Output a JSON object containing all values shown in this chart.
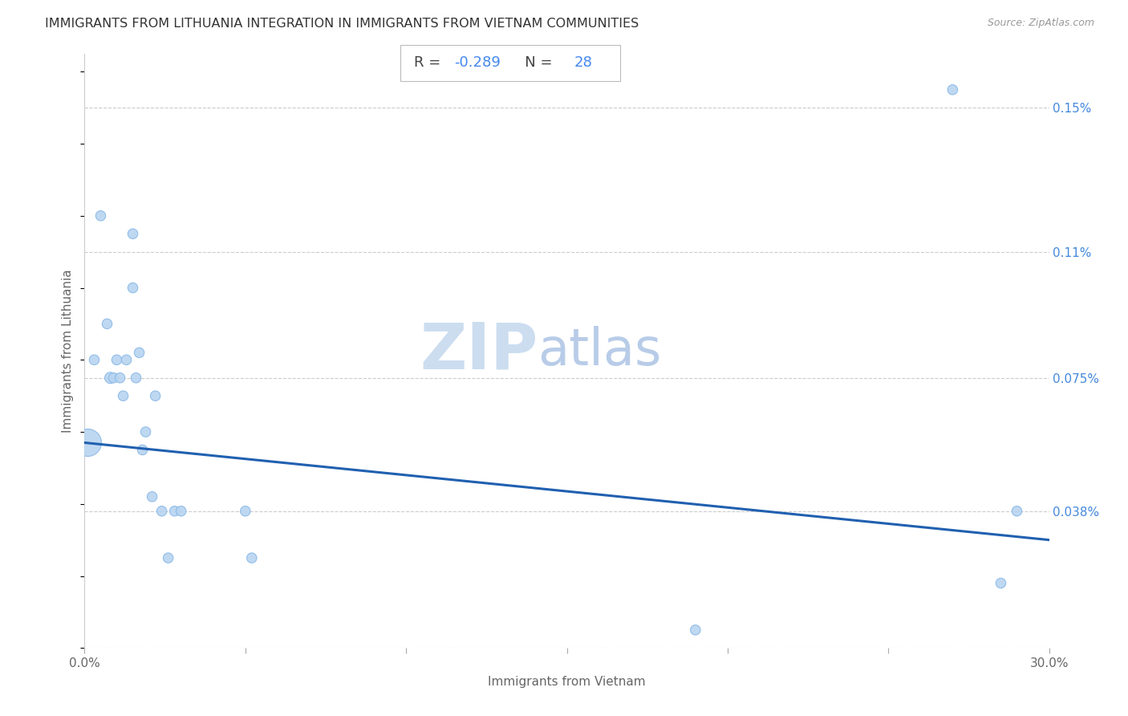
{
  "title": "IMMIGRANTS FROM LITHUANIA INTEGRATION IN IMMIGRANTS FROM VIETNAM COMMUNITIES",
  "source": "Source: ZipAtlas.com",
  "xlabel": "Immigrants from Vietnam",
  "ylabel": "Immigrants from Lithuania",
  "R_text": "R = ",
  "R_val": "-0.289",
  "N_text": "   N = ",
  "N_val": "28",
  "xlim": [
    0.0,
    0.3
  ],
  "ylim": [
    0.0,
    0.00165
  ],
  "xticks": [
    0.0,
    0.05,
    0.1,
    0.15,
    0.2,
    0.25,
    0.3
  ],
  "xticklabels": [
    "0.0%",
    "",
    "",
    "",
    "",
    "",
    "30.0%"
  ],
  "right_yticks": [
    0.0,
    0.00038,
    0.00075,
    0.0011,
    0.0015
  ],
  "right_yticklabels": [
    "",
    "0.038%",
    "0.075%",
    "0.11%",
    "0.15%"
  ],
  "scatter_x": [
    0.001,
    0.003,
    0.005,
    0.007,
    0.008,
    0.009,
    0.01,
    0.011,
    0.012,
    0.013,
    0.015,
    0.015,
    0.016,
    0.017,
    0.018,
    0.019,
    0.021,
    0.022,
    0.024,
    0.026,
    0.028,
    0.03,
    0.05,
    0.052,
    0.19,
    0.27,
    0.285,
    0.29
  ],
  "scatter_y": [
    0.00057,
    0.0008,
    0.0012,
    0.0009,
    0.00075,
    0.00075,
    0.0008,
    0.00075,
    0.0007,
    0.0008,
    0.001,
    0.00115,
    0.00075,
    0.00082,
    0.00055,
    0.0006,
    0.00042,
    0.0007,
    0.00038,
    0.00025,
    0.00038,
    0.00038,
    0.00038,
    0.00025,
    5e-05,
    0.00155,
    0.00018,
    0.00038
  ],
  "scatter_sizes": [
    600,
    80,
    80,
    80,
    100,
    80,
    80,
    80,
    80,
    80,
    80,
    80,
    80,
    80,
    80,
    80,
    80,
    80,
    80,
    80,
    80,
    80,
    80,
    80,
    80,
    80,
    80,
    80
  ],
  "dot_color": "#b8d4f0",
  "dot_edge_color": "#88b8e8",
  "line_color": "#2060b0",
  "bg_color": "#ffffff",
  "title_color": "#333333",
  "source_color": "#999999",
  "right_label_color": "#4488dd",
  "watermark_zip_color": "#ccddf0",
  "watermark_atlas_color": "#b8cce8",
  "regression_x0": 0.0,
  "regression_x1": 0.3,
  "regression_y0": 0.00057,
  "regression_y1": 0.0003
}
